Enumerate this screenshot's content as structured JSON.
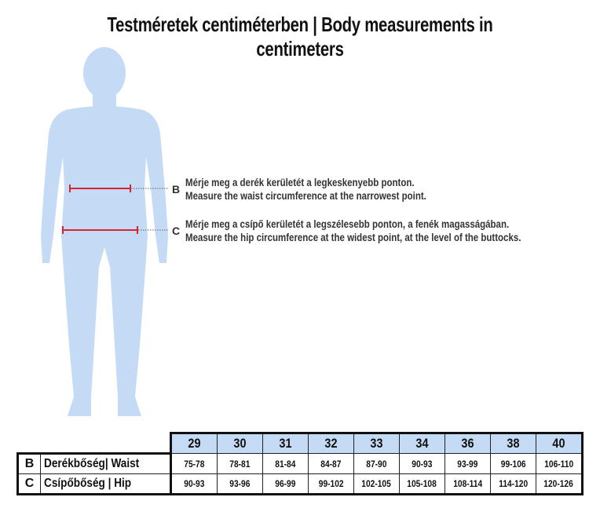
{
  "title": "Testméretek centiméterben | Body measurements in centimeters",
  "colors": {
    "figure": "#c5dbf5",
    "measure_line": "#d9232e",
    "header_fill": "#c5dbf5"
  },
  "notes": [
    {
      "marker": "B",
      "hu": "Mérje meg a derék kerületét a legkeskenyebb ponton.",
      "en": "Measure the waist circumference at the narrowest point."
    },
    {
      "marker": "C",
      "hu": "Mérje meg a csípő kerületét a legszélesebb ponton, a fenék magasságában.",
      "en": "Measure the hip circumference at the widest point, at the level of the buttocks."
    }
  ],
  "table": {
    "sizes": [
      "29",
      "30",
      "31",
      "32",
      "33",
      "34",
      "36",
      "38",
      "40"
    ],
    "rows": [
      {
        "letter": "B",
        "label": "Derékbőség| Waist",
        "values": [
          "75-78",
          "78-81",
          "81-84",
          "84-87",
          "87-90",
          "90-93",
          "93-99",
          "99-106",
          "106-110"
        ]
      },
      {
        "letter": "C",
        "label": "Csípőbőség | Hip",
        "values": [
          "90-93",
          "93-96",
          "96-99",
          "99-102",
          "102-105",
          "105-108",
          "108-114",
          "114-120",
          "120-126"
        ]
      }
    ]
  }
}
